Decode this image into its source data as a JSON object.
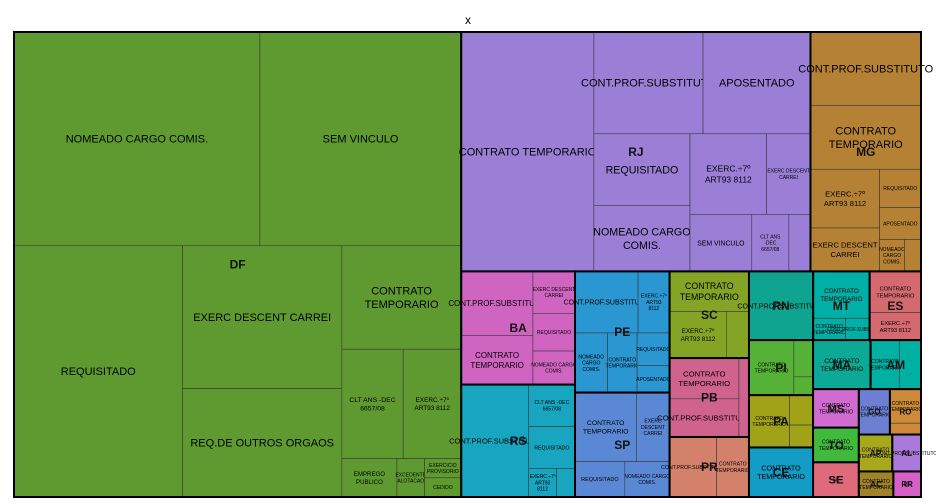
{
  "chart_data": {
    "type": "treemap",
    "title": "x",
    "groups": [
      {
        "name": "DF",
        "color": "#5e9a30",
        "items": [
          {
            "name": "NOMEADO CARGO COMIS.",
            "value": 2980
          },
          {
            "name": "REQUISITADO",
            "value": 2400
          },
          {
            "name": "SEM VINCULO",
            "value": 2440
          },
          {
            "name": "EXERC DESCENT CARREI",
            "value": 1290
          },
          {
            "name": "REQ.DE OUTROS ORGAOS",
            "value": 980
          },
          {
            "name": "CONTRATO TEMPORARIO",
            "value": 700
          },
          {
            "name": "CLT ANS -DEC 6657/08",
            "value": 380
          },
          {
            "name": "EXERC.÷7º ART93 8112",
            "value": 360
          },
          {
            "name": "EMPREGO PUBLICO",
            "value": 120
          },
          {
            "name": "EXCEDENTE ALOTACAO",
            "value": 60
          },
          {
            "name": "EXERCICIO PROVISORIO",
            "value": 40
          },
          {
            "name": "CEDIDO",
            "value": 40
          }
        ]
      },
      {
        "name": "RJ",
        "color": "#9b7fd6",
        "items": [
          {
            "name": "CONTRATO TEMPORARIO",
            "value": 1800
          },
          {
            "name": "CONT.PROF.SUBSTITUTO",
            "value": 630
          },
          {
            "name": "APOSENTADO",
            "value": 620
          },
          {
            "name": "NOMEADO CARGO COMIS.",
            "value": 360
          },
          {
            "name": "EXERC.÷7º ART93 8112",
            "value": 350
          },
          {
            "name": "REQUISITADO",
            "value": 390
          },
          {
            "name": "EXERC DESCENT CARREI",
            "value": 200
          },
          {
            "name": "SEM VINCULO",
            "value": 200
          },
          {
            "name": "CLT ANS -DEC 6657/08",
            "value": 120
          },
          {
            "name": "REQ.DE OUTROS ORGAOS",
            "value": 70
          }
        ]
      },
      {
        "name": "MG",
        "color": "#b58235",
        "items": [
          {
            "name": "CONT.PROF.SUBSTITUTO",
            "value": 460
          },
          {
            "name": "CONTRATO TEMPORARIO",
            "value": 400
          },
          {
            "name": "EXERC.÷7º ART93 8112",
            "value": 230
          },
          {
            "name": "EXERC DESCENT CARREI",
            "value": 170
          },
          {
            "name": "REQUISITADO",
            "value": 90
          },
          {
            "name": "APOSENTADO",
            "value": 75
          },
          {
            "name": "NOMEADO CARGO COMIS.",
            "value": 45
          },
          {
            "name": "CLT ANS -DEC 6657/08",
            "value": 30
          }
        ]
      },
      {
        "name": "RS",
        "color": "#17a5c0",
        "items": [
          {
            "name": "CONT.PROF.SUBSTITUTO",
            "value": 430
          },
          {
            "name": "CLT ANS -DEC 6657/08",
            "value": 110
          },
          {
            "name": "REQUISITADO",
            "value": 110
          },
          {
            "name": "EXERC.÷7º ART93 8112",
            "value": 45
          },
          {
            "name": "SEM VINCULO",
            "value": 30
          }
        ]
      },
      {
        "name": "BA",
        "color": "#d065c1",
        "items": [
          {
            "name": "CONT.PROF.SUBSTITUTO",
            "value": 260
          },
          {
            "name": "CONTRATO TEMPORARIO",
            "value": 200
          },
          {
            "name": "EXERC DESCENT CARREI",
            "value": 100
          },
          {
            "name": "REQUISITADO",
            "value": 90
          },
          {
            "name": "NOMEADO CARGO COMIS.",
            "value": 80
          }
        ]
      },
      {
        "name": "SP",
        "color": "#5a88d4",
        "items": [
          {
            "name": "CONTRATO TEMPORARIO",
            "value": 240
          },
          {
            "name": "REQUISITADO",
            "value": 100
          },
          {
            "name": "NOMEADO CARGO COMIS.",
            "value": 90
          },
          {
            "name": "EXERC DESCENT CARREI",
            "value": 130
          }
        ]
      },
      {
        "name": "PE",
        "color": "#2a96d2",
        "items": [
          {
            "name": "CONT.PROF.SUBSTITUTO",
            "value": 220
          },
          {
            "name": "CONTRATO TEMPORARIO",
            "value": 100
          },
          {
            "name": "EXERC.÷7º ART93 8112",
            "value": 110
          },
          {
            "name": "NOMEADO CARGO COMIS.",
            "value": 110
          },
          {
            "name": "REQUISITADO",
            "value": 60
          },
          {
            "name": "APOSENTADO",
            "value": 50
          }
        ]
      },
      {
        "name": "GO",
        "color": "#6d7fd3",
        "items": [
          {
            "name": "CONTRATO TEMPORARIO",
            "value": 80
          }
        ]
      },
      {
        "name": "PB",
        "color": "#d0628e",
        "items": [
          {
            "name": "CONTRATO TEMPORARIO",
            "value": 160
          },
          {
            "name": "APOSENTADO",
            "value": 45
          },
          {
            "name": "CONT.PROF.SUBSTITUTO",
            "value": 150
          }
        ]
      },
      {
        "name": "CE",
        "color": "#139cc5",
        "items": [
          {
            "name": "CONTRATO TEMPORARIO",
            "value": 180
          }
        ]
      },
      {
        "name": "ES",
        "color": "#d46a6f",
        "items": [
          {
            "name": "CONTRATO TEMPORARIO",
            "value": 120
          },
          {
            "name": "EXERC.÷7º ART93 8112",
            "value": 80
          }
        ]
      },
      {
        "name": "SC",
        "color": "#84a425",
        "items": [
          {
            "name": "EXERC.÷7º ART93 8112",
            "value": 150
          },
          {
            "name": "CONTRATO TEMPORARIO",
            "value": 180
          },
          {
            "name": "EXERC DESCENT CARREI",
            "value": 60
          }
        ]
      },
      {
        "name": "RN",
        "color": "#0ea48f",
        "items": [
          {
            "name": "CONT.PROF.SUBSTITUTO",
            "value": 250
          }
        ]
      },
      {
        "name": "MA",
        "color": "#0ca996",
        "items": [
          {
            "name": "CONTRATO TEMPORARIO",
            "value": 160
          }
        ]
      },
      {
        "name": "PI",
        "color": "#55b237",
        "items": [
          {
            "name": "CONT.PROF.SUBSTITUTO",
            "value": 40
          },
          {
            "name": "CONTRATO TEMPORARIO",
            "value": 140
          },
          {
            "name": "APOSENTADO",
            "value": 20
          }
        ]
      },
      {
        "name": "MS",
        "color": "#d06bd0",
        "items": [
          {
            "name": "CONTRATO TEMPORARIO",
            "value": 100
          }
        ]
      },
      {
        "name": "AL",
        "color": "#ab79d9",
        "items": [
          {
            "name": "CONT.PROF.SUBSTITUTO",
            "value": 60
          }
        ]
      },
      {
        "name": "AM",
        "color": "#00b1a3",
        "items": [
          {
            "name": "NOMEADO CARGO COMIS.",
            "value": 60
          },
          {
            "name": "CONTRATO TEMPORARIO",
            "value": 80
          }
        ]
      },
      {
        "name": "PR",
        "color": "#d3816b",
        "items": [
          {
            "name": "CONT.PROF.SUBSTITUTO",
            "value": 160
          },
          {
            "name": "CONTRATO TEMPORARIO",
            "value": 110
          }
        ]
      },
      {
        "name": "PA",
        "color": "#a0a218",
        "items": [
          {
            "name": "CONTRATO TEMPORARIO",
            "value": 120
          },
          {
            "name": "NOMEADO CARGO COMIS.",
            "value": 40
          },
          {
            "name": "EXERC DESCENT CARREI",
            "value": 30
          }
        ]
      },
      {
        "name": "MT",
        "color": "#00b0a6",
        "items": [
          {
            "name": "CONTRATO TEMPORARIO",
            "value": 150
          },
          {
            "name": "CONTRATO TEMPORARIO",
            "value": 40
          },
          {
            "name": "CONT.PROF.SUBSTITUTO",
            "value": 30
          }
        ]
      },
      {
        "name": "TO",
        "color": "#3fba3d",
        "items": [
          {
            "name": "CONTRATO TEMPORARIO",
            "value": 90
          }
        ]
      },
      {
        "name": "RO",
        "color": "#cd8a38",
        "items": [
          {
            "name": "CONTRATO TEMPORARIO",
            "value": 60
          },
          {
            "name": "REQUISITADO",
            "value": 20
          }
        ]
      },
      {
        "name": "SE",
        "color": "#df6a7a",
        "items": [
          {
            "name": "SE",
            "value": 90
          }
        ]
      },
      {
        "name": "AC",
        "color": "#a0822a",
        "items": [
          {
            "name": "CONTRATO TEMPORARIO",
            "value": 50
          }
        ]
      },
      {
        "name": "AP",
        "color": "#a7a81c",
        "items": [
          {
            "name": "CONTRATO TEMPORARIO",
            "value": 70
          }
        ]
      },
      {
        "name": "RR",
        "color": "#d661c6",
        "items": [
          {
            "name": "RR",
            "value": 40
          }
        ]
      }
    ]
  }
}
